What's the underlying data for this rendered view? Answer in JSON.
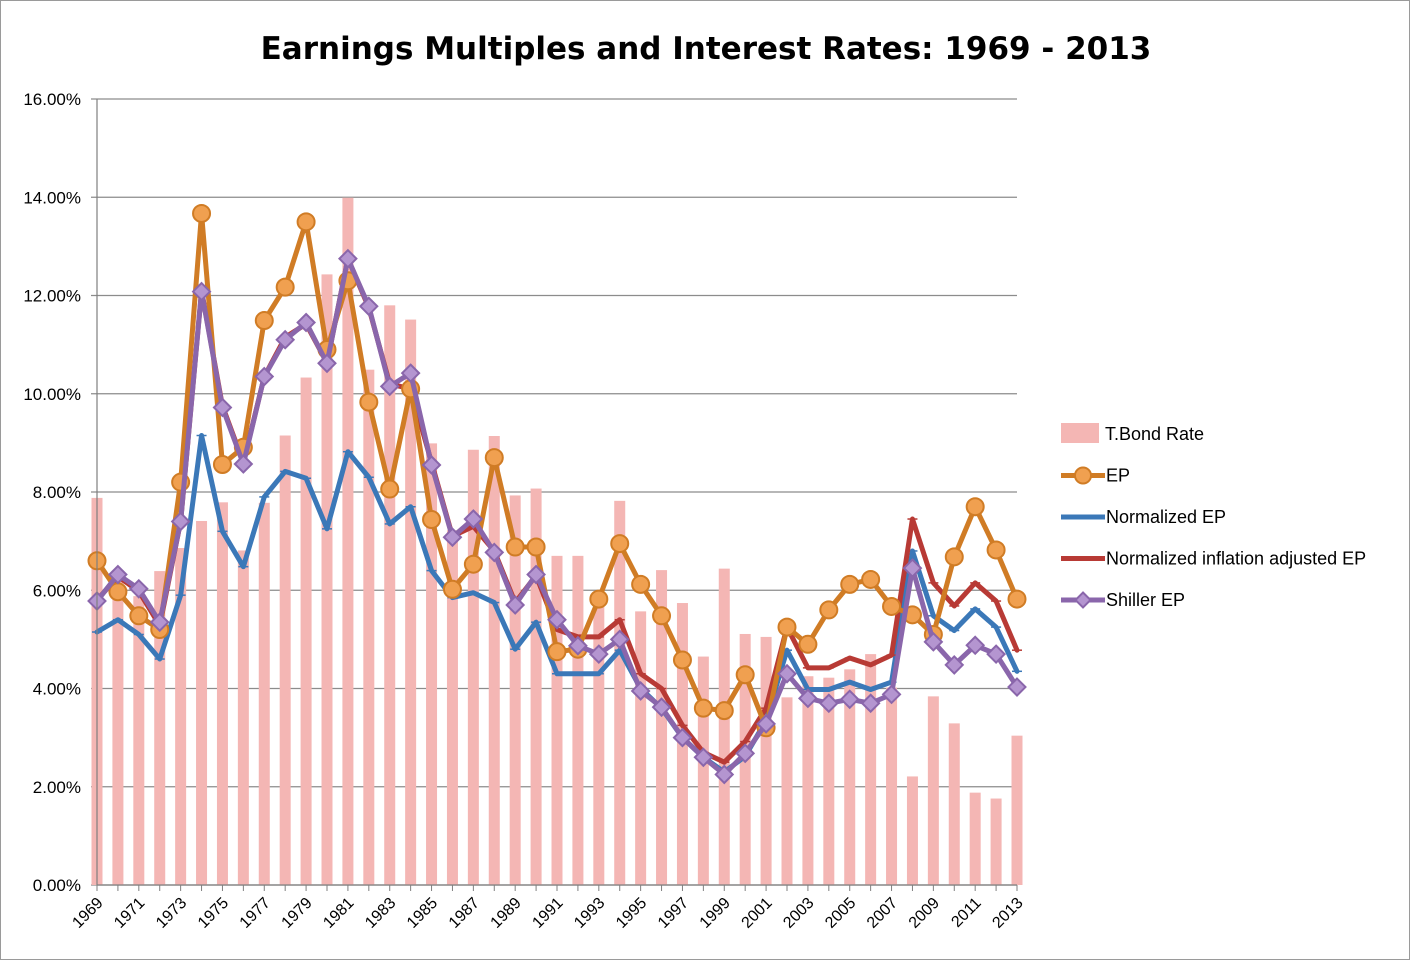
{
  "chart_data": {
    "type": "bar+line",
    "title": "Earnings Multiples and Interest Rates: 1969 - 2013",
    "xlabel": "",
    "ylabel": "",
    "ylim": [
      0,
      0.16
    ],
    "yticks": [
      "0.00%",
      "2.00%",
      "4.00%",
      "6.00%",
      "8.00%",
      "10.00%",
      "12.00%",
      "14.00%",
      "16.00%"
    ],
    "ytick_values": [
      0,
      0.02,
      0.04,
      0.06,
      0.08,
      0.1,
      0.12,
      0.14,
      0.16
    ],
    "grid": true,
    "legend_position": "right",
    "categories": [
      1969,
      1970,
      1971,
      1972,
      1973,
      1974,
      1975,
      1976,
      1977,
      1978,
      1979,
      1980,
      1981,
      1982,
      1983,
      1984,
      1985,
      1986,
      1987,
      1988,
      1989,
      1990,
      1991,
      1992,
      1993,
      1994,
      1995,
      1996,
      1997,
      1998,
      1999,
      2000,
      2001,
      2002,
      2003,
      2004,
      2005,
      2006,
      2007,
      2008,
      2009,
      2010,
      2011,
      2012,
      2013
    ],
    "xtick_labels": [
      "1969",
      "1971",
      "1973",
      "1975",
      "1977",
      "1979",
      "1981",
      "1983",
      "1985",
      "1987",
      "1989",
      "1991",
      "1993",
      "1995",
      "1997",
      "1999",
      "2001",
      "2003",
      "2005",
      "2007",
      "2009",
      "2011",
      "2013"
    ],
    "series": [
      {
        "name": "T.Bond Rate",
        "kind": "bar",
        "color": "#f4b6b4",
        "values": [
          0.0788,
          0.0628,
          0.0588,
          0.0639,
          0.0686,
          0.0741,
          0.0779,
          0.0681,
          0.0778,
          0.0915,
          0.1033,
          0.1243,
          0.1399,
          0.1049,
          0.118,
          0.1151,
          0.0899,
          0.0722,
          0.0886,
          0.0914,
          0.0793,
          0.0807,
          0.067,
          0.067,
          0.0582,
          0.0782,
          0.0557,
          0.0641,
          0.0574,
          0.0465,
          0.0644,
          0.0511,
          0.0505,
          0.0382,
          0.0425,
          0.0422,
          0.0439,
          0.047,
          0.0402,
          0.0221,
          0.0384,
          0.0329,
          0.0188,
          0.0176,
          0.0304
        ]
      },
      {
        "name": "EP",
        "kind": "line",
        "marker": "circle",
        "color": "#d07c25",
        "values": [
          0.066,
          0.0597,
          0.0548,
          0.052,
          0.082,
          0.1367,
          0.0856,
          0.0891,
          0.1149,
          0.1217,
          0.135,
          0.109,
          0.123,
          0.0983,
          0.0806,
          0.101,
          0.0744,
          0.0602,
          0.0653,
          0.087,
          0.0688,
          0.0688,
          0.0475,
          0.048,
          0.0582,
          0.0695,
          0.0612,
          0.0548,
          0.0458,
          0.036,
          0.0355,
          0.0428,
          0.032,
          0.0525,
          0.049,
          0.056,
          0.0612,
          0.0622,
          0.0567,
          0.055,
          0.051,
          0.0668,
          0.077,
          0.0682,
          0.0582
        ]
      },
      {
        "name": "Normalized EP",
        "kind": "line",
        "marker": "none",
        "color": "#3b78b8",
        "values": [
          0.0515,
          0.054,
          0.051,
          0.046,
          0.059,
          0.0915,
          0.072,
          0.0648,
          0.079,
          0.0842,
          0.0828,
          0.0725,
          0.0882,
          0.083,
          0.0735,
          0.077,
          0.064,
          0.0585,
          0.0595,
          0.0575,
          0.048,
          0.0535,
          0.043,
          0.043,
          0.043,
          0.0478,
          0.04,
          0.036,
          0.03,
          0.026,
          0.023,
          0.0262,
          0.0335,
          0.0478,
          0.0398,
          0.0398,
          0.0413,
          0.0398,
          0.0413,
          0.068,
          0.0548,
          0.0518,
          0.0562,
          0.0525,
          0.0435
        ]
      },
      {
        "name": "Normalized inflation adjusted EP",
        "kind": "line",
        "marker": "none",
        "color": "#b83a35",
        "values": [
          0.058,
          0.0628,
          0.0598,
          0.0528,
          0.074,
          0.121,
          0.0975,
          0.086,
          0.1035,
          0.1115,
          0.1142,
          0.1063,
          0.1275,
          0.1175,
          0.102,
          0.101,
          0.086,
          0.071,
          0.073,
          0.068,
          0.0575,
          0.063,
          0.052,
          0.0505,
          0.0505,
          0.054,
          0.043,
          0.04,
          0.0325,
          0.027,
          0.025,
          0.0292,
          0.036,
          0.0525,
          0.0442,
          0.0442,
          0.0462,
          0.0448,
          0.0468,
          0.0745,
          0.0615,
          0.0568,
          0.0615,
          0.0578,
          0.0478
        ]
      },
      {
        "name": "Shiller EP",
        "kind": "line",
        "marker": "diamond",
        "color": "#8a66ab",
        "values": [
          0.0578,
          0.0632,
          0.0603,
          0.0535,
          0.074,
          0.1208,
          0.0972,
          0.0857,
          0.1035,
          0.111,
          0.1145,
          0.1062,
          0.1275,
          0.1178,
          0.1015,
          0.1042,
          0.0855,
          0.0708,
          0.0745,
          0.0677,
          0.057,
          0.0632,
          0.054,
          0.0487,
          0.047,
          0.05,
          0.0395,
          0.0362,
          0.03,
          0.026,
          0.0225,
          0.0268,
          0.0328,
          0.043,
          0.038,
          0.037,
          0.0378,
          0.037,
          0.0388,
          0.0645,
          0.0495,
          0.0448,
          0.0488,
          0.047,
          0.0403
        ]
      }
    ]
  }
}
